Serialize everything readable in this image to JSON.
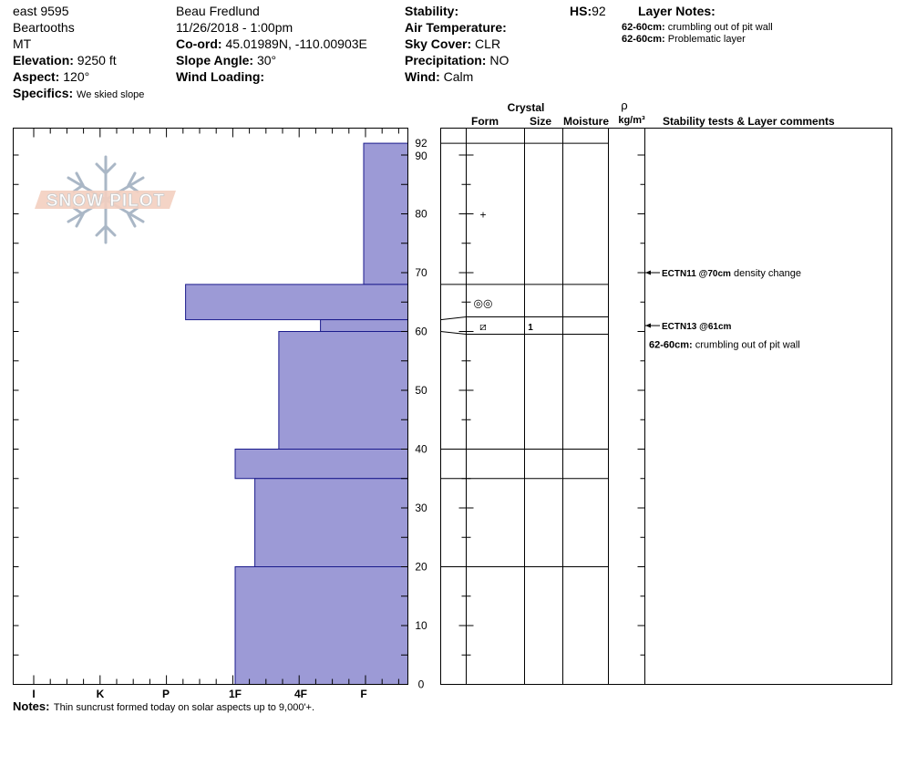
{
  "header": {
    "location": "east 9595",
    "range": "Beartooths",
    "state": "MT",
    "elevation_label": "Elevation:",
    "elevation_value": "9250 ft",
    "aspect_label": "Aspect:",
    "aspect_value": "120°",
    "specifics_label": "Specifics:",
    "specifics_value": "We skied slope",
    "observer": "Beau  Fredlund",
    "datetime": "11/26/2018 - 1:00pm",
    "coord_label": "Co-ord:",
    "coord_value": "45.01989N, -110.00903E",
    "slope_label": "Slope Angle:",
    "slope_value": "30°",
    "wind_loading_label": "Wind Loading:",
    "wind_loading_value": "",
    "stability_label": "Stability:",
    "stability_value": "",
    "air_temp_label": "Air Temperature:",
    "air_temp_value": "",
    "sky_label": "Sky Cover:",
    "sky_value": "CLR",
    "precip_label": "Precipitation:",
    "precip_value": "NO",
    "wind_label": "Wind:",
    "wind_value": "Calm",
    "hs_label": "HS:",
    "hs_value": "92",
    "layer_notes_title": "Layer Notes:",
    "layer_notes": [
      {
        "range": "62-60cm:",
        "text": "crumbling out of pit wall"
      },
      {
        "range": "62-60cm:",
        "text": "Problematic layer"
      }
    ]
  },
  "logo_text": "SNOW PILOT",
  "columns": {
    "crystal": "Crystal",
    "form": "Form",
    "size": "Size",
    "moisture": "Moisture",
    "rho": "ρ",
    "density_unit": "kg/m³",
    "stability_comments": "Stability tests & Layer comments"
  },
  "chart_data": {
    "type": "bar",
    "orientation": "horizontal",
    "y_label_unit": "cm",
    "ylim": [
      0,
      92
    ],
    "y_ticks": [
      0,
      10,
      20,
      30,
      40,
      50,
      60,
      70,
      80,
      90,
      92
    ],
    "x_hardness_ticks": [
      "I",
      "K",
      "P",
      "1F",
      "4F",
      "F"
    ],
    "hardness_layers": [
      {
        "top": 92,
        "bottom": 68,
        "hardness": "F"
      },
      {
        "top": 68,
        "bottom": 62,
        "hardness": "P-"
      },
      {
        "top": 62,
        "bottom": 60,
        "hardness": "4F-"
      },
      {
        "top": 60,
        "bottom": 40,
        "hardness": "4F+"
      },
      {
        "top": 40,
        "bottom": 35,
        "hardness": "1F"
      },
      {
        "top": 35,
        "bottom": 20,
        "hardness": "1F-"
      },
      {
        "top": 20,
        "bottom": 0,
        "hardness": "1F"
      }
    ],
    "layer_boundaries": [
      92,
      68,
      62,
      60,
      40,
      35,
      20
    ],
    "grain_forms": [
      {
        "depth": 80,
        "symbol": "+"
      },
      {
        "depth": 65,
        "symbol": "◎◎"
      },
      {
        "depth": 61,
        "symbol": "⧄",
        "size": "1"
      }
    ],
    "stability_tests": [
      {
        "depth": 70,
        "code": "ECTN11 @70cm",
        "comment": "density change"
      },
      {
        "depth": 61,
        "code": "ECTN13 @61cm",
        "comment": ""
      }
    ],
    "layer_comments": [
      {
        "depth": 60,
        "range": "62-60cm:",
        "text": "crumbling out of pit wall"
      }
    ]
  },
  "notes": {
    "label": "Notes:",
    "text": "Thin suncrust formed today on solar aspects up to 9,000'+."
  }
}
